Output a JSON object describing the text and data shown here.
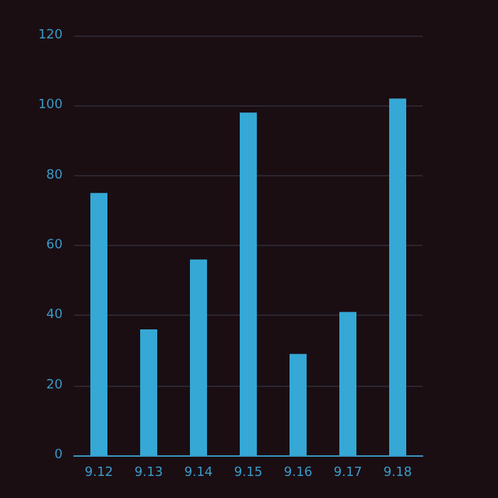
{
  "chart_data": {
    "type": "bar",
    "categories": [
      "9.12",
      "9.13",
      "9.14",
      "9.15",
      "9.16",
      "9.17",
      "9.18"
    ],
    "values": [
      75,
      36,
      56,
      98,
      29,
      41,
      102
    ],
    "color": "#35a8d5",
    "ylim": [
      0,
      120
    ],
    "yticks": [
      0,
      20,
      40,
      60,
      80,
      100,
      120
    ],
    "grid": "y"
  }
}
